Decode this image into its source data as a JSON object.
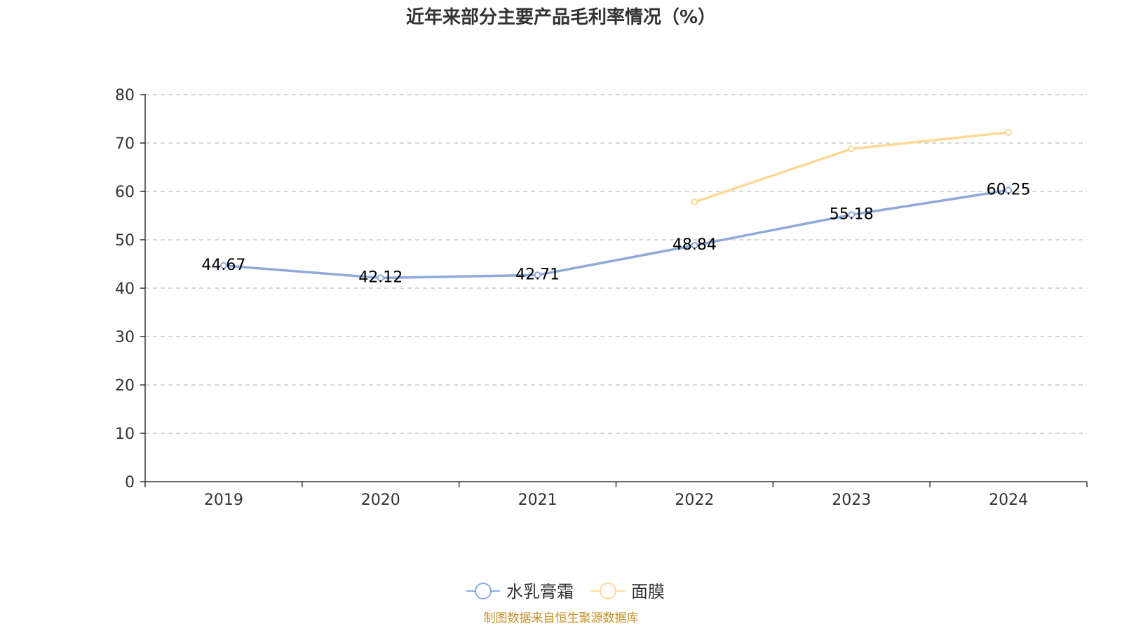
{
  "chart_data": {
    "type": "line",
    "title": "近年来部分主要产品毛利率情况（%）",
    "categories": [
      "2019",
      "2020",
      "2021",
      "2022",
      "2023",
      "2024"
    ],
    "ylim": [
      0,
      80
    ],
    "yticks": [
      0,
      10,
      20,
      30,
      40,
      50,
      60,
      70,
      80
    ],
    "grid": true,
    "legend_position": "bottom",
    "series": [
      {
        "name": "水乳膏霜",
        "color": "#8eaad9",
        "values": [
          44.67,
          42.12,
          42.71,
          48.84,
          55.18,
          60.25
        ],
        "labels": [
          "44.67",
          "42.12",
          "42.71",
          "48.84",
          "55.18",
          "60.25"
        ]
      },
      {
        "name": "面膜",
        "color": "#fdd999",
        "values": [
          null,
          null,
          null,
          57.8,
          68.8,
          72.2
        ],
        "labels": []
      }
    ]
  },
  "source_text": "制图数据来自恒生聚源数据库",
  "source_color": "#c8902a"
}
